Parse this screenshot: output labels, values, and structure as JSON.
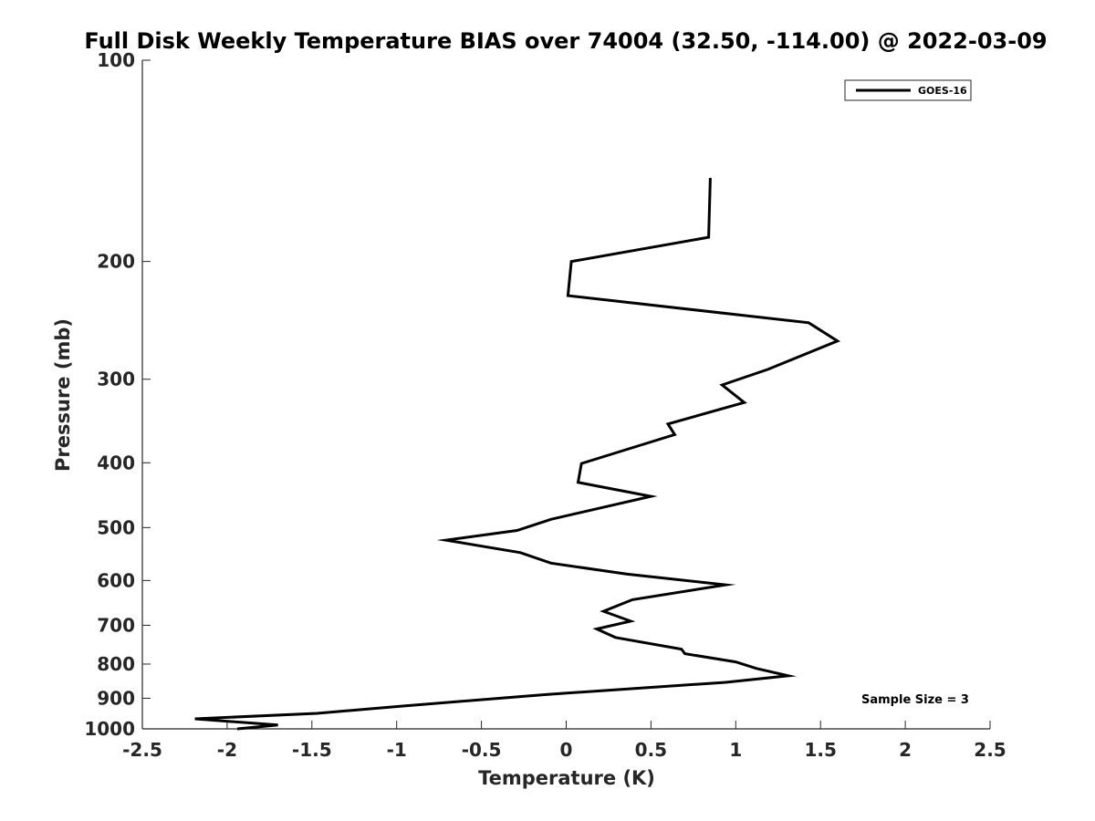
{
  "chart_data": {
    "type": "line",
    "title": "Full Disk Weekly Temperature BIAS over 74004 (32.50, -114.00) @ 2022-03-09",
    "xlabel": "Temperature (K)",
    "ylabel": "Pressure (mb)",
    "xlim": [
      -2.5,
      2.5
    ],
    "ylim": [
      1000,
      100
    ],
    "y_scale": "log",
    "y_reversed": true,
    "xticks": [
      "-2.5",
      "-2",
      "-1.5",
      "-1",
      "-0.5",
      "0",
      "0.5",
      "1",
      "1.5",
      "2",
      "2.5"
    ],
    "xtick_values": [
      -2.5,
      -2,
      -1.5,
      -1,
      -0.5,
      0,
      0.5,
      1,
      1.5,
      2,
      2.5
    ],
    "yticks": [
      "100",
      "200",
      "300",
      "400",
      "500",
      "600",
      "700",
      "800",
      "900",
      "1000"
    ],
    "ytick_values": [
      100,
      200,
      300,
      400,
      500,
      600,
      700,
      800,
      900,
      1000
    ],
    "grid": false,
    "legend_position": "top-right",
    "annotation": "Sample Size = 3",
    "series": [
      {
        "name": "GOES-16",
        "color": "#000000",
        "x": [
          0.85,
          0.84,
          0.03,
          0.01,
          1.43,
          1.6,
          1.19,
          0.92,
          1.05,
          0.6,
          0.64,
          0.3,
          0.09,
          0.07,
          0.5,
          -0.09,
          -0.29,
          -0.71,
          -0.27,
          -0.09,
          0.36,
          0.94,
          0.39,
          0.22,
          0.38,
          0.18,
          0.29,
          0.68,
          0.7,
          1.0,
          1.12,
          1.31,
          0.94,
          -0.11,
          -0.98,
          -1.47,
          -2.19,
          -1.7,
          -1.94
        ],
        "y": [
          150,
          184,
          200,
          225,
          247,
          263,
          290,
          306,
          325,
          350,
          363,
          386,
          401,
          428,
          449,
          486,
          505,
          522,
          545,
          565,
          587,
          609,
          641,
          667,
          690,
          709,
          730,
          760,
          772,
          794,
          812,
          833,
          852,
          888,
          925,
          948,
          966,
          987,
          1000
        ]
      }
    ]
  }
}
